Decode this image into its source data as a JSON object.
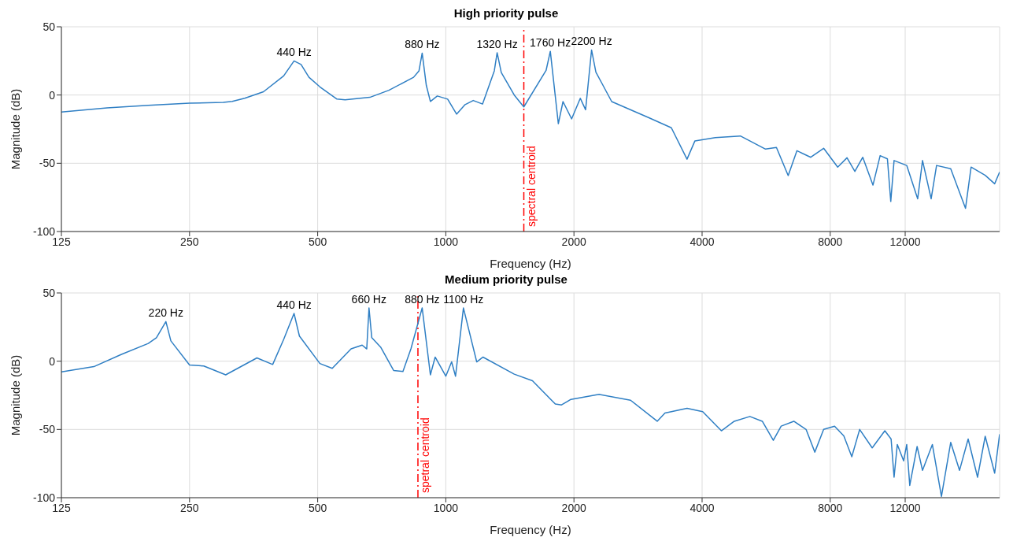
{
  "chart_data": [
    {
      "type": "line",
      "title": "High priority pulse",
      "xlabel": "Frequency (Hz)",
      "ylabel": "Magnitude  (dB)",
      "log": "x",
      "grid": true,
      "xlim": [
        125,
        20000
      ],
      "xticks": [
        125,
        250,
        500,
        1000,
        2000,
        4000,
        8000,
        12000
      ],
      "ylim": [
        -100,
        50
      ],
      "yticks": [
        -100,
        -50,
        0,
        50
      ],
      "x": [
        125,
        160,
        200,
        250,
        300,
        315,
        337,
        373,
        416,
        440,
        457,
        477,
        506,
        555,
        580,
        663,
        735,
        840,
        865,
        880,
        900,
        920,
        955,
        1010,
        1060,
        1110,
        1160,
        1220,
        1300,
        1320,
        1350,
        1448,
        1525,
        1720,
        1760,
        1838,
        1885,
        1975,
        2070,
        2130,
        2200,
        2252,
        2453,
        3007,
        3387,
        3687,
        3848,
        4296,
        4920,
        5637,
        5980,
        6373,
        6680,
        7200,
        7720,
        8330,
        8760,
        9140,
        9540,
        10080,
        10480,
        10900,
        11100,
        11300,
        12100,
        12840,
        13180,
        13810,
        14220,
        15350,
        16630,
        17140,
        18500,
        19470,
        20000
      ],
      "series": [
        {
          "color": "#2f7fc4",
          "values": [
            -12.5,
            -9.4,
            -7.5,
            -6,
            -5.4,
            -4.7,
            -2.4,
            2.4,
            14,
            25,
            22.4,
            13,
            6,
            -3,
            -3.5,
            -1.7,
            3.5,
            13,
            17.7,
            30.7,
            7,
            -4.7,
            -0.7,
            -3,
            -14,
            -7,
            -4,
            -6.6,
            17.7,
            31,
            16.5,
            0,
            -8.7,
            18,
            32,
            -21,
            -4.8,
            -17.5,
            -2.4,
            -10.8,
            33,
            16.8,
            -4.8,
            -16.8,
            -24,
            -47,
            -33.6,
            -31.2,
            -30,
            -39.6,
            -38.4,
            -59,
            -40.8,
            -45.6,
            -39,
            -52.8,
            -46,
            -56,
            -45.6,
            -66,
            -44.4,
            -46.8,
            -78,
            -48,
            -51.6,
            -76,
            -48,
            -76,
            -51.6,
            -54,
            -83,
            -52.8,
            -58.8,
            -65,
            -56.4
          ]
        }
      ],
      "ref_lines": [
        {
          "axis": "x",
          "value": 1525,
          "label": "spectral centroid",
          "color": "#ff0000",
          "line_style": "dashed"
        }
      ],
      "annotations": [
        {
          "text": "440 Hz",
          "x": 440,
          "y": 25
        },
        {
          "text": "880 Hz",
          "x": 880,
          "y": 30.7
        },
        {
          "text": "1320 Hz",
          "x": 1320,
          "y": 31
        },
        {
          "text": "1760 Hz",
          "x": 1760,
          "y": 32
        },
        {
          "text": "2200 Hz",
          "x": 2200,
          "y": 33
        }
      ]
    },
    {
      "type": "line",
      "title": "Medium priority pulse",
      "xlabel": "Frequency (Hz)",
      "ylabel": "Magnitude  (dB)",
      "log": "x",
      "grid": true,
      "xlim": [
        125,
        20000
      ],
      "xticks": [
        125,
        250,
        500,
        1000,
        2000,
        4000,
        8000,
        12000
      ],
      "ylim": [
        -100,
        50
      ],
      "yticks": [
        -100,
        -50,
        0,
        50
      ],
      "x": [
        125,
        149,
        173,
        200,
        209,
        220,
        226,
        250,
        270,
        304,
        360,
        392,
        416,
        440,
        453,
        506,
        541,
        599,
        636,
        652,
        660,
        670,
        704,
        754,
        793,
        828,
        880,
        920,
        944,
        1000,
        1032,
        1054,
        1100,
        1182,
        1223,
        1448,
        1598,
        1808,
        1870,
        1967,
        2292,
        2716,
        3138,
        3272,
        3687,
        4013,
        4440,
        4760,
        5180,
        5540,
        5880,
        6135,
        6570,
        7020,
        7360,
        7720,
        8190,
        8610,
        8990,
        9380,
        10040,
        10750,
        11120,
        11300,
        11500,
        11900,
        12100,
        12300,
        12800,
        13180,
        13900,
        14600,
        15350,
        16100,
        16870,
        17750,
        18500,
        19470,
        20000
      ],
      "series": [
        {
          "color": "#2f7fc4",
          "values": [
            -7.8,
            -4,
            5,
            13,
            17.2,
            29,
            14.9,
            -2.8,
            -3.5,
            -10,
            2.4,
            -2.4,
            16,
            35,
            18.4,
            -1.7,
            -5.2,
            9,
            11.8,
            9,
            39,
            17.2,
            10,
            -6.8,
            -7.5,
            9,
            39,
            -10,
            3,
            -11,
            -0.5,
            -11,
            39,
            -0.5,
            3,
            -9.5,
            -14.3,
            -31.4,
            -32,
            -28,
            -24.3,
            -28.6,
            -44,
            -38,
            -34.5,
            -37,
            -51,
            -44,
            -40.5,
            -44,
            -58,
            -47.6,
            -44,
            -50,
            -66.6,
            -50,
            -47.6,
            -54.7,
            -70,
            -50,
            -63.5,
            -51,
            -57,
            -85,
            -61,
            -73,
            -61,
            -91,
            -62.5,
            -80,
            -61,
            -99,
            -59.5,
            -80,
            -57,
            -85,
            -55,
            -82,
            -53.5
          ]
        }
      ],
      "ref_lines": [
        {
          "axis": "x",
          "value": 860,
          "label": "spetral centroid",
          "color": "#ff0000",
          "line_style": "dashed"
        }
      ],
      "annotations": [
        {
          "text": "220 Hz",
          "x": 220,
          "y": 29
        },
        {
          "text": "440 Hz",
          "x": 440,
          "y": 35
        },
        {
          "text": "660 Hz",
          "x": 660,
          "y": 39
        },
        {
          "text": "880 Hz",
          "x": 880,
          "y": 39
        },
        {
          "text": "1100 Hz",
          "x": 1100,
          "y": 39
        }
      ]
    }
  ]
}
